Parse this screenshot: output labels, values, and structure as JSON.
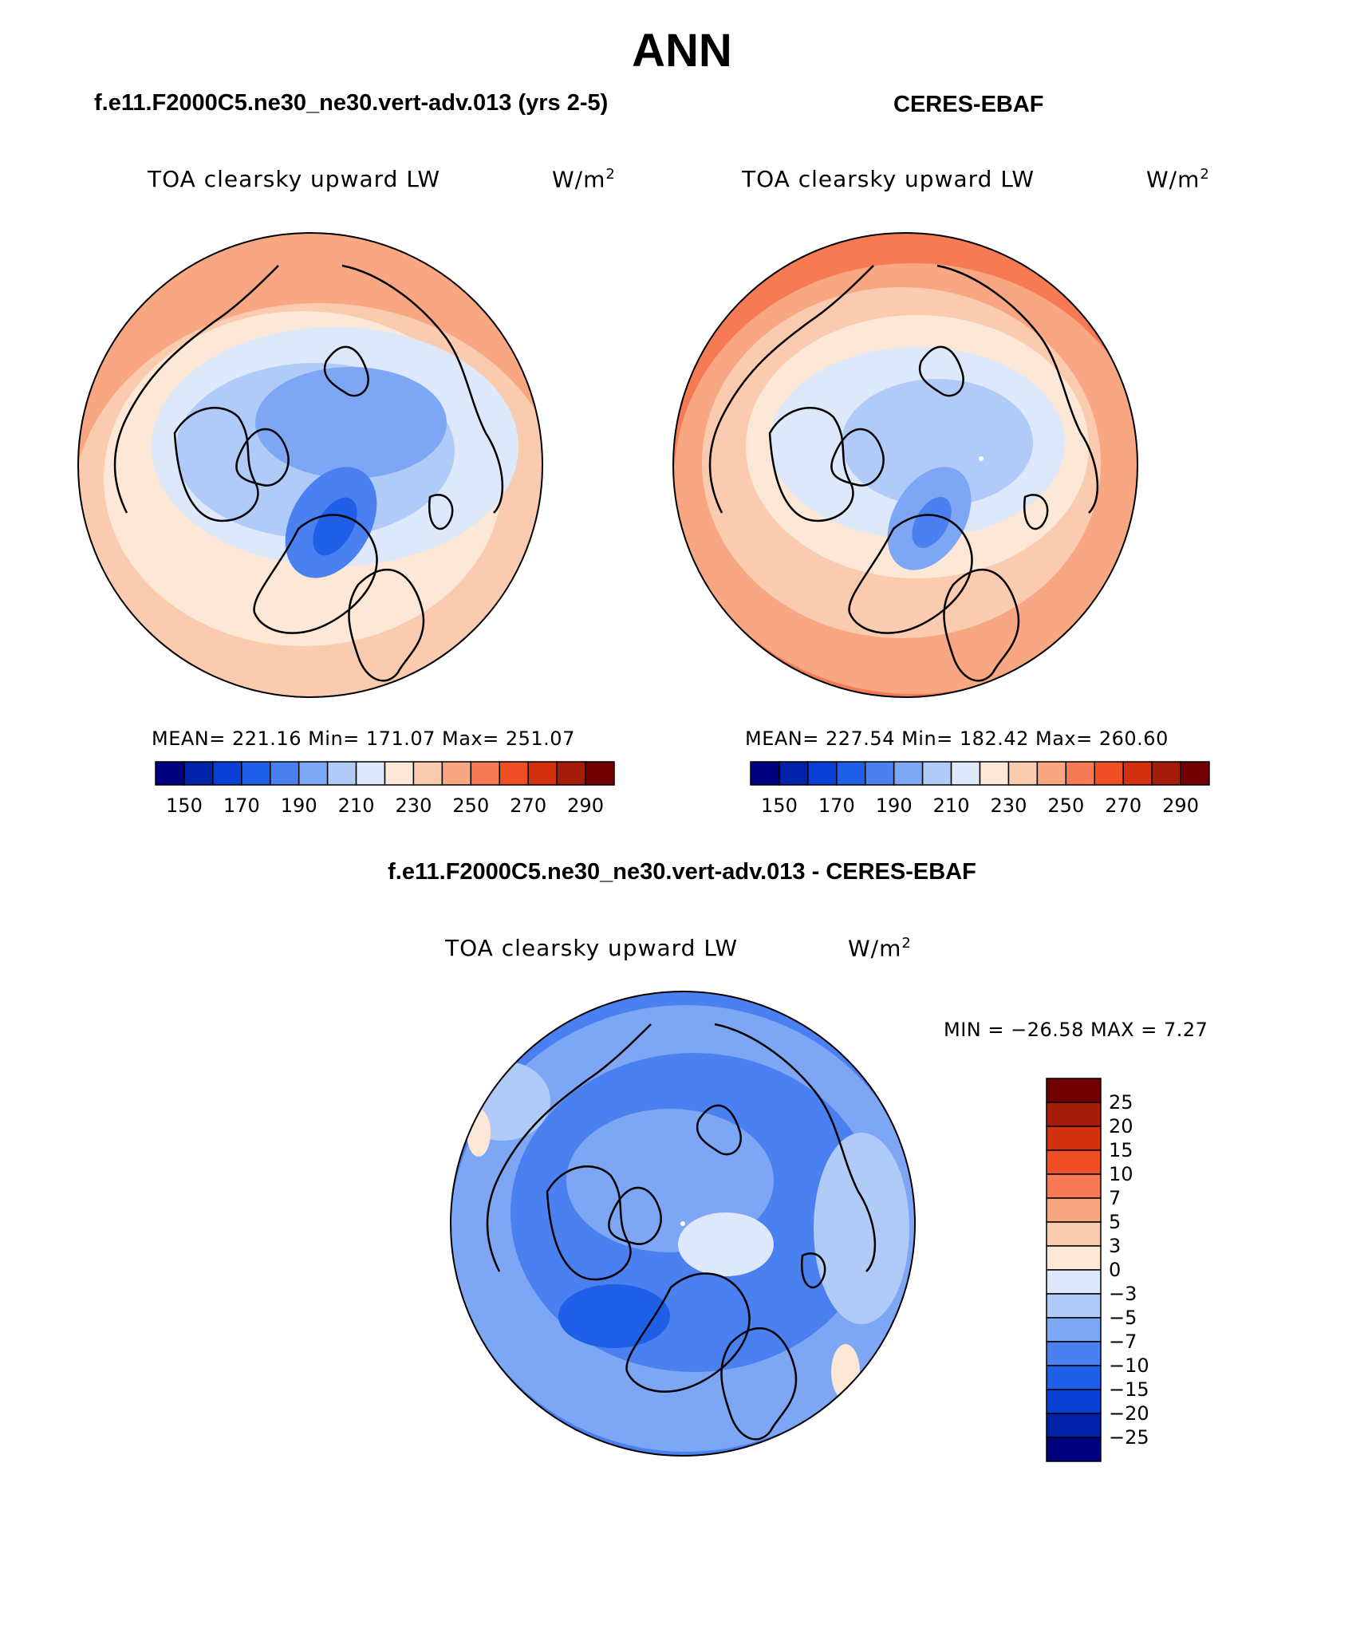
{
  "title": "ANN",
  "panels": [
    {
      "case": "f.e11.F2000C5.ne30_ne30.vert-adv.013 (yrs 2-5)",
      "variable": "TOA clearsky upward LW",
      "units_base": "W/m",
      "units_exp": "2",
      "stats": "MEAN= 221.16   Min= 171.07   Max= 251.07",
      "colorbar_labels": [
        "150",
        "170",
        "190",
        "210",
        "230",
        "250",
        "270",
        "290"
      ]
    },
    {
      "case": "CERES-EBAF",
      "variable": "TOA clearsky upward LW",
      "units_base": "W/m",
      "units_exp": "2",
      "stats": "MEAN= 227.54   Min= 182.42   Max= 260.60",
      "colorbar_labels": [
        "150",
        "170",
        "190",
        "210",
        "230",
        "250",
        "270",
        "290"
      ]
    }
  ],
  "diff_panel": {
    "title": "f.e11.F2000C5.ne30_ne30.vert-adv.013 - CERES-EBAF",
    "variable": "TOA clearsky upward LW",
    "units_base": "W/m",
    "units_exp": "2",
    "minmax": "MIN = −26.58 MAX =    7.27",
    "colorbar_labels": [
      "25",
      "20",
      "15",
      "10",
      "7",
      "5",
      "3",
      "0",
      "−3",
      "−5",
      "−7",
      "−10",
      "−15",
      "−20",
      "−25"
    ]
  },
  "colors": {
    "abs_scale": [
      "#00007f",
      "#0022a8",
      "#0a3fd6",
      "#1f5fe8",
      "#4a80f0",
      "#7da6f5",
      "#b0cbf8",
      "#dde9fb",
      "#fde7d6",
      "#fbcbb0",
      "#f9a683",
      "#f67b54",
      "#ee4f25",
      "#d2300f",
      "#a61c0a",
      "#730000"
    ],
    "diff_scale": [
      "#00007f",
      "#0022a8",
      "#0a3fd6",
      "#1f5fe8",
      "#4a80f0",
      "#7da6f5",
      "#b0cbf8",
      "#dde9fb",
      "#fde7d6",
      "#fbcbb0",
      "#f9a683",
      "#f67b54",
      "#ee4f25",
      "#d2300f",
      "#a61c0a",
      "#730000"
    ]
  }
}
